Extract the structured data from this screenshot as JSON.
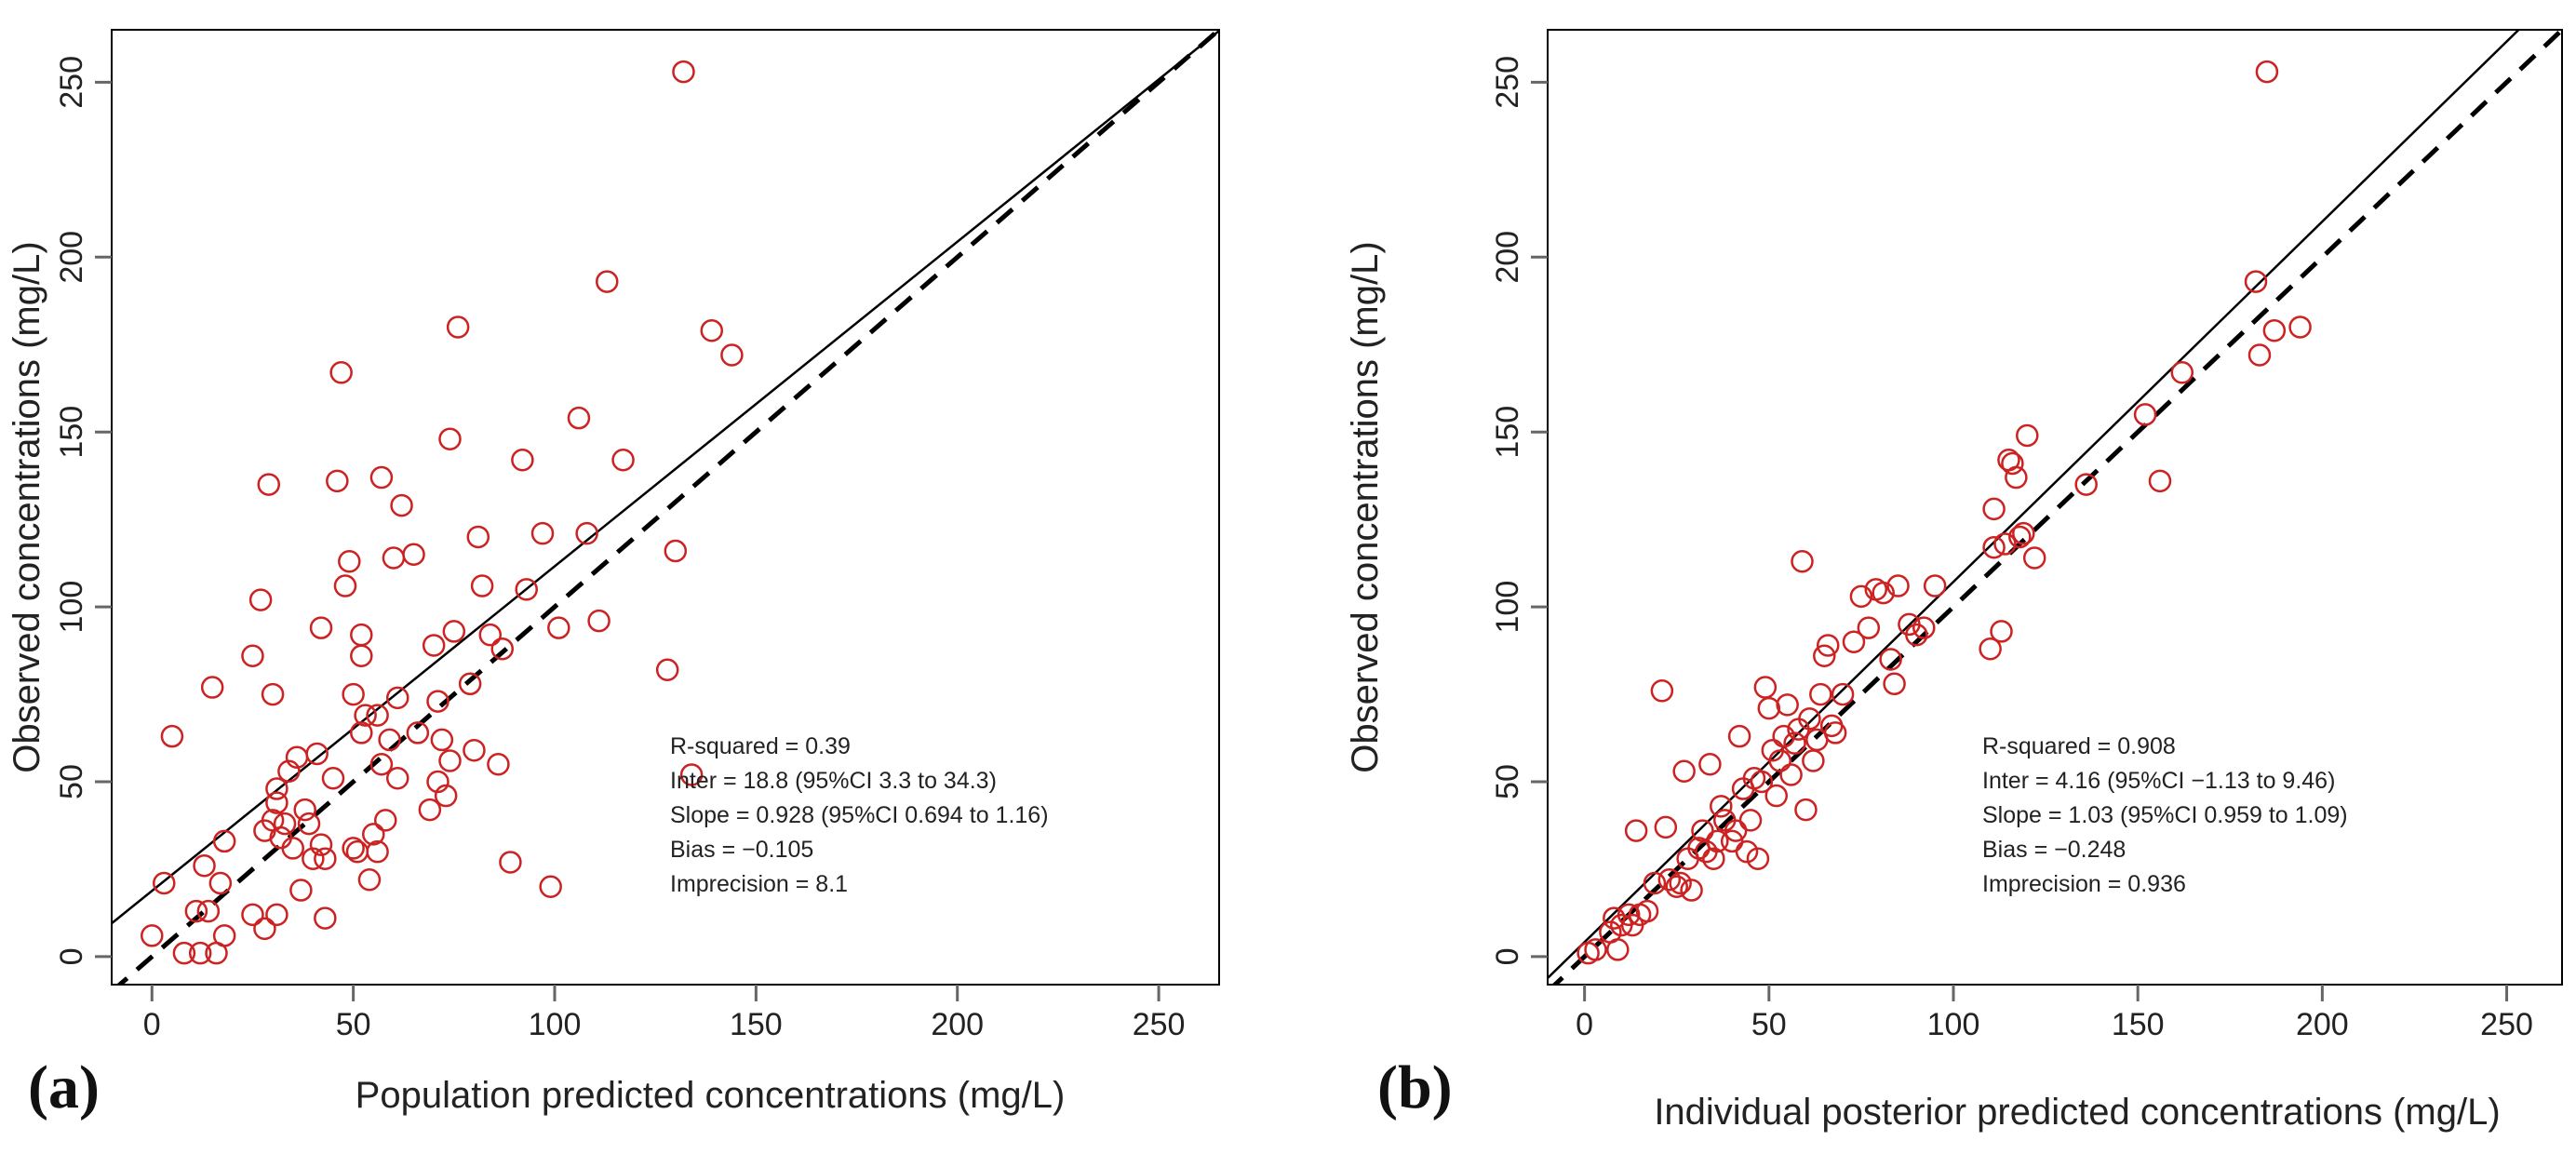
{
  "chart_data": [
    {
      "type": "scatter",
      "panel_label": "(a)",
      "xlabel": "Population predicted concentrations (mg/L)",
      "ylabel": "Observed concentrations (mg/L)",
      "xlim": [
        -10,
        265
      ],
      "ylim": [
        -8,
        265
      ],
      "xticks": [
        0,
        50,
        100,
        150,
        200,
        250
      ],
      "yticks": [
        0,
        50,
        100,
        150,
        200,
        250
      ],
      "grid": false,
      "marker_color": "#cc2222",
      "regression": {
        "intercept": 18.8,
        "slope": 0.928
      },
      "identity_line": true,
      "annotations": [
        "R-squared = 0.39",
        "Inter = 18.8 (95%CI 3.3 to 34.3)",
        "Slope = 0.928 (95%CI 0.694 to 1.16)",
        "Bias = −0.105",
        "Imprecision  = 8.1"
      ],
      "points": [
        [
          0,
          6
        ],
        [
          3,
          21
        ],
        [
          5,
          63
        ],
        [
          8,
          1
        ],
        [
          11,
          13
        ],
        [
          12,
          1
        ],
        [
          13,
          26
        ],
        [
          14,
          13
        ],
        [
          15,
          77
        ],
        [
          16,
          1
        ],
        [
          17,
          21
        ],
        [
          18,
          6
        ],
        [
          18,
          33
        ],
        [
          25,
          86
        ],
        [
          25,
          12
        ],
        [
          27,
          102
        ],
        [
          28,
          8
        ],
        [
          28,
          36
        ],
        [
          29,
          135
        ],
        [
          30,
          75
        ],
        [
          30,
          39
        ],
        [
          31,
          44
        ],
        [
          31,
          48
        ],
        [
          31,
          12
        ],
        [
          32,
          34
        ],
        [
          33,
          38
        ],
        [
          34,
          53
        ],
        [
          35,
          31
        ],
        [
          36,
          57
        ],
        [
          37,
          19
        ],
        [
          38,
          42
        ],
        [
          39,
          38
        ],
        [
          40,
          28
        ],
        [
          41,
          58
        ],
        [
          42,
          94
        ],
        [
          42,
          32
        ],
        [
          43,
          28
        ],
        [
          43,
          11
        ],
        [
          45,
          51
        ],
        [
          46,
          136
        ],
        [
          47,
          167
        ],
        [
          48,
          106
        ],
        [
          49,
          113
        ],
        [
          50,
          75
        ],
        [
          50,
          31
        ],
        [
          51,
          30
        ],
        [
          52,
          64
        ],
        [
          52,
          92
        ],
        [
          52,
          86
        ],
        [
          53,
          69
        ],
        [
          54,
          22
        ],
        [
          55,
          35
        ],
        [
          56,
          69
        ],
        [
          56,
          30
        ],
        [
          57,
          137
        ],
        [
          57,
          55
        ],
        [
          58,
          39
        ],
        [
          59,
          62
        ],
        [
          60,
          114
        ],
        [
          61,
          74
        ],
        [
          61,
          51
        ],
        [
          62,
          129
        ],
        [
          65,
          115
        ],
        [
          66,
          64
        ],
        [
          69,
          42
        ],
        [
          70,
          89
        ],
        [
          71,
          73
        ],
        [
          71,
          50
        ],
        [
          72,
          62
        ],
        [
          73,
          46
        ],
        [
          74,
          56
        ],
        [
          74,
          148
        ],
        [
          75,
          93
        ],
        [
          76,
          180
        ],
        [
          79,
          78
        ],
        [
          80,
          59
        ],
        [
          81,
          120
        ],
        [
          82,
          106
        ],
        [
          84,
          92
        ],
        [
          86,
          55
        ],
        [
          87,
          88
        ],
        [
          89,
          27
        ],
        [
          92,
          142
        ],
        [
          93,
          105
        ],
        [
          97,
          121
        ],
        [
          99,
          20
        ],
        [
          101,
          94
        ],
        [
          106,
          154
        ],
        [
          108,
          121
        ],
        [
          111,
          96
        ],
        [
          113,
          193
        ],
        [
          117,
          142
        ],
        [
          128,
          82
        ],
        [
          130,
          116
        ],
        [
          132,
          253
        ],
        [
          134,
          52
        ],
        [
          139,
          179
        ],
        [
          144,
          172
        ]
      ]
    },
    {
      "type": "scatter",
      "panel_label": "(b)",
      "xlabel": "Individual posterior predicted concentrations (mg/L)",
      "ylabel": "Observed concentrations (mg/L)",
      "xlim": [
        -10,
        265
      ],
      "ylim": [
        -8,
        265
      ],
      "xticks": [
        0,
        50,
        100,
        150,
        200,
        250
      ],
      "yticks": [
        0,
        50,
        100,
        150,
        200,
        250
      ],
      "grid": false,
      "marker_color": "#cc2222",
      "regression": {
        "intercept": 4.16,
        "slope": 1.03
      },
      "identity_line": true,
      "annotations": [
        "R-squared = 0.908",
        "Inter = 4.16 (95%CI −1.13 to 9.46)",
        "Slope = 1.03 (95%CI 0.959 to 1.09)",
        "Bias = −0.248",
        "Imprecision = 0.936"
      ],
      "points": [
        [
          1,
          1
        ],
        [
          3,
          2
        ],
        [
          7,
          7
        ],
        [
          8,
          11
        ],
        [
          9,
          2
        ],
        [
          10,
          9
        ],
        [
          12,
          12
        ],
        [
          13,
          9
        ],
        [
          14,
          36
        ],
        [
          15,
          12
        ],
        [
          17,
          13
        ],
        [
          19,
          21
        ],
        [
          21,
          76
        ],
        [
          22,
          37
        ],
        [
          23,
          22
        ],
        [
          25,
          20
        ],
        [
          26,
          21
        ],
        [
          27,
          53
        ],
        [
          28,
          28
        ],
        [
          29,
          19
        ],
        [
          31,
          31
        ],
        [
          32,
          36
        ],
        [
          33,
          30
        ],
        [
          34,
          55
        ],
        [
          35,
          28
        ],
        [
          36,
          33
        ],
        [
          37,
          43
        ],
        [
          38,
          39
        ],
        [
          40,
          33
        ],
        [
          41,
          36
        ],
        [
          42,
          63
        ],
        [
          43,
          48
        ],
        [
          44,
          30
        ],
        [
          45,
          39
        ],
        [
          46,
          51
        ],
        [
          47,
          28
        ],
        [
          48,
          50
        ],
        [
          49,
          77
        ],
        [
          50,
          71
        ],
        [
          51,
          59
        ],
        [
          52,
          46
        ],
        [
          53,
          56
        ],
        [
          54,
          63
        ],
        [
          55,
          72
        ],
        [
          56,
          52
        ],
        [
          57,
          61
        ],
        [
          58,
          65
        ],
        [
          59,
          113
        ],
        [
          60,
          42
        ],
        [
          61,
          68
        ],
        [
          62,
          56
        ],
        [
          63,
          62
        ],
        [
          64,
          75
        ],
        [
          65,
          86
        ],
        [
          66,
          89
        ],
        [
          67,
          66
        ],
        [
          68,
          64
        ],
        [
          70,
          75
        ],
        [
          73,
          90
        ],
        [
          75,
          103
        ],
        [
          77,
          94
        ],
        [
          79,
          105
        ],
        [
          81,
          104
        ],
        [
          83,
          85
        ],
        [
          84,
          78
        ],
        [
          85,
          106
        ],
        [
          88,
          95
        ],
        [
          90,
          92
        ],
        [
          92,
          94
        ],
        [
          95,
          106
        ],
        [
          110,
          88
        ],
        [
          111,
          117
        ],
        [
          111,
          128
        ],
        [
          113,
          93
        ],
        [
          114,
          118
        ],
        [
          115,
          142
        ],
        [
          116,
          141
        ],
        [
          117,
          137
        ],
        [
          118,
          120
        ],
        [
          119,
          121
        ],
        [
          120,
          149
        ],
        [
          122,
          114
        ],
        [
          136,
          135
        ],
        [
          152,
          155
        ],
        [
          156,
          136
        ],
        [
          162,
          167
        ],
        [
          182,
          193
        ],
        [
          183,
          172
        ],
        [
          185,
          253
        ],
        [
          187,
          179
        ],
        [
          194,
          180
        ]
      ]
    }
  ]
}
